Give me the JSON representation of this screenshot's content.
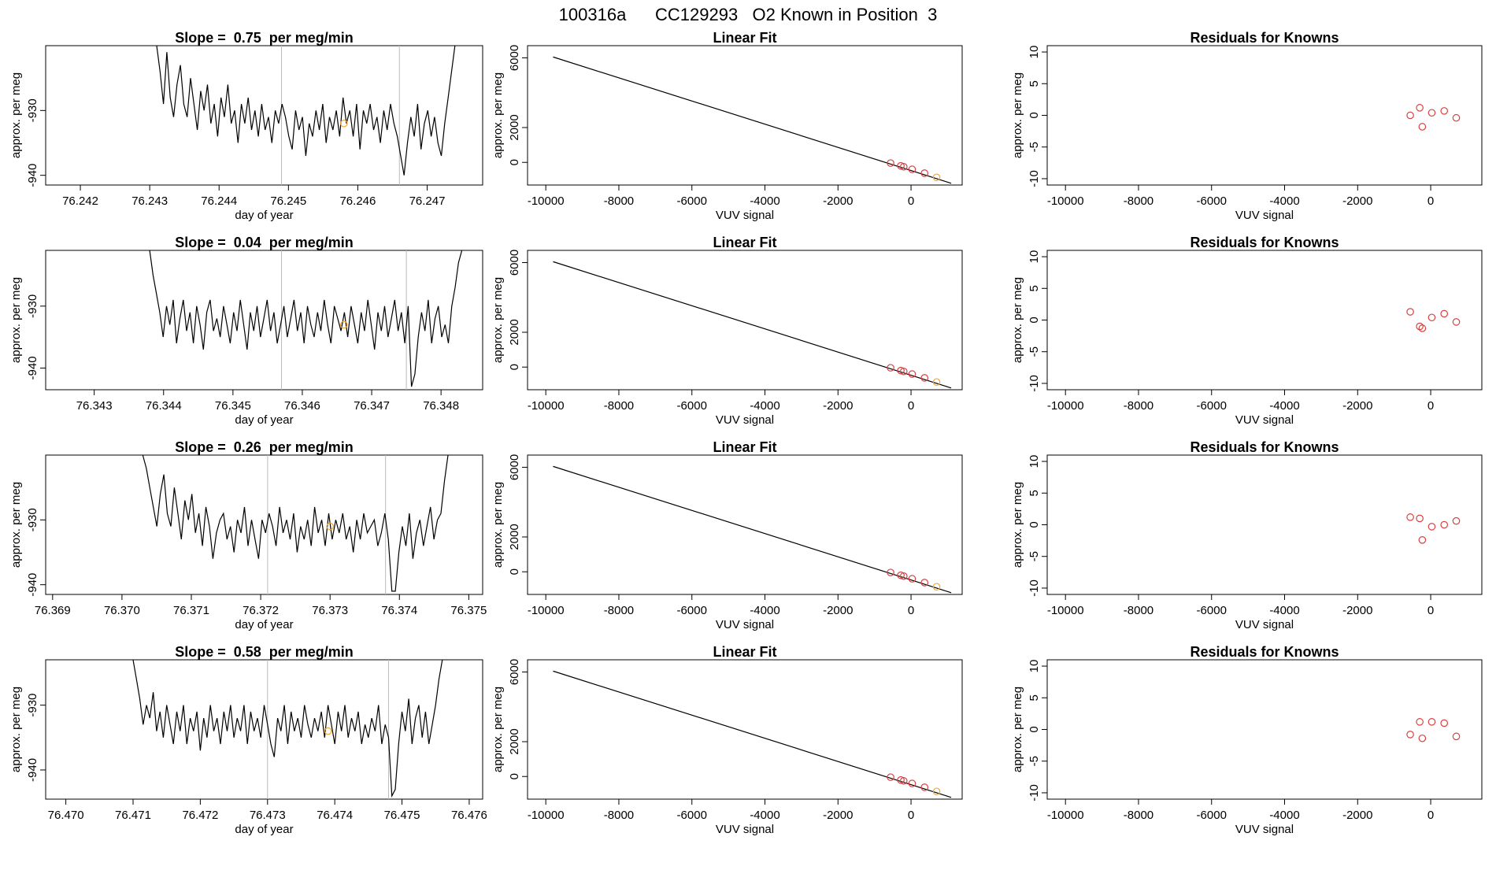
{
  "figure_title": "100316a      CC129293   O2 Known in Position  3",
  "colors": {
    "line": "#000000",
    "known_point": "#d94040",
    "unknown_point": "#f0a830",
    "vline": "#bbbbbb"
  },
  "chart_data": [
    {
      "type": "line",
      "row": 0,
      "panel": "time-series",
      "title": "Slope =  0.75  per meg/min",
      "xlabel": "day of year",
      "ylabel": "approx. per meg",
      "xlim": [
        76.2415,
        76.2478
      ],
      "ylim": [
        -941.5,
        -920.0
      ],
      "x_ticks": [
        "76.242",
        "76.243",
        "76.244",
        "76.245",
        "76.246",
        "76.247"
      ],
      "y_ticks": [
        "-930",
        "-940"
      ],
      "vlines": [
        76.2449,
        76.2466
      ],
      "x_start": 76.2431,
      "x_end": 76.2474,
      "series": [
        {
          "values": [
            -920,
            -924,
            -929,
            -921,
            -928,
            -931,
            -926,
            -923,
            -929,
            -931,
            -925,
            -929,
            -933,
            -927,
            -930,
            -926,
            -932,
            -929,
            -934,
            -928,
            -931,
            -926,
            -932,
            -930,
            -935,
            -929,
            -932,
            -928,
            -933,
            -930,
            -934,
            -929,
            -933,
            -931,
            -935,
            -930,
            -932,
            -929,
            -931,
            -934,
            -936,
            -930,
            -933,
            -931,
            -937,
            -932,
            -934,
            -930,
            -933,
            -929,
            -935,
            -931,
            -933,
            -930,
            -934,
            -928,
            -932,
            -930,
            -934,
            -929,
            -936,
            -930,
            -932,
            -929,
            -933,
            -931,
            -935,
            -930,
            -933,
            -929,
            -932,
            -934,
            -937,
            -940,
            -935,
            -931,
            -934,
            -929,
            -936,
            -932,
            -930,
            -934,
            -931,
            -935,
            -937,
            -932,
            -928,
            -924,
            -920
          ]
        }
      ],
      "points": [
        {
          "x": 76.2458,
          "y": -932,
          "kind": "unknown"
        }
      ]
    },
    {
      "type": "scatter",
      "row": 0,
      "panel": "linear-fit",
      "title": "Linear Fit",
      "xlabel": "VUV signal",
      "ylabel": "approx. per meg",
      "xlim": [
        -10500,
        1400
      ],
      "ylim": [
        -1300,
        6700
      ],
      "x_ticks": [
        "-10000",
        "-8000",
        "-6000",
        "-4000",
        "-2000",
        "0"
      ],
      "y_ticks": [
        "0",
        "2000",
        "6000"
      ],
      "fit_line": {
        "x": [
          -9800,
          1100
        ],
        "y": [
          6050,
          -1200
        ]
      },
      "points": [
        {
          "x": -560,
          "y": -40,
          "kind": "known"
        },
        {
          "x": -280,
          "y": -200,
          "kind": "known"
        },
        {
          "x": -200,
          "y": -250,
          "kind": "known"
        },
        {
          "x": 30,
          "y": -400,
          "kind": "known"
        },
        {
          "x": 370,
          "y": -620,
          "kind": "known"
        },
        {
          "x": 700,
          "y": -860,
          "kind": "unknown"
        }
      ]
    },
    {
      "type": "scatter",
      "row": 0,
      "panel": "residuals",
      "title": "Residuals for Knowns",
      "xlabel": "VUV signal",
      "ylabel": "approx. per meg",
      "xlim": [
        -10500,
        1400
      ],
      "ylim": [
        -11,
        11
      ],
      "x_ticks": [
        "-10000",
        "-8000",
        "-6000",
        "-4000",
        "-2000",
        "0"
      ],
      "y_ticks": [
        "10",
        "5",
        "0",
        "-5",
        "-10"
      ],
      "points": [
        {
          "x": -560,
          "y": 0.0,
          "kind": "known"
        },
        {
          "x": -300,
          "y": 1.2,
          "kind": "known"
        },
        {
          "x": -230,
          "y": -1.8,
          "kind": "known"
        },
        {
          "x": 30,
          "y": 0.4,
          "kind": "known"
        },
        {
          "x": 370,
          "y": 0.7,
          "kind": "known"
        },
        {
          "x": 700,
          "y": -0.4,
          "kind": "known"
        }
      ]
    },
    {
      "type": "line",
      "row": 1,
      "panel": "time-series",
      "title": "Slope =  0.04  per meg/min",
      "xlabel": "day of year",
      "ylabel": "approx. per meg",
      "xlim": [
        76.3423,
        76.3486
      ],
      "ylim": [
        -943.5,
        -921.0
      ],
      "x_ticks": [
        "76.343",
        "76.344",
        "76.345",
        "76.346",
        "76.347",
        "76.348"
      ],
      "y_ticks": [
        "-930",
        "-940"
      ],
      "vlines": [
        76.3457,
        76.3475
      ],
      "x_start": 76.3438,
      "x_end": 76.3483,
      "series": [
        {
          "values": [
            -921,
            -925,
            -928,
            -931,
            -935,
            -930,
            -933,
            -929,
            -936,
            -932,
            -929,
            -934,
            -931,
            -936,
            -930,
            -933,
            -937,
            -931,
            -929,
            -934,
            -932,
            -935,
            -930,
            -933,
            -936,
            -931,
            -934,
            -929,
            -933,
            -937,
            -931,
            -934,
            -930,
            -935,
            -932,
            -929,
            -934,
            -931,
            -936,
            -933,
            -930,
            -935,
            -932,
            -929,
            -934,
            -931,
            -936,
            -930,
            -933,
            -935,
            -931,
            -934,
            -929,
            -933,
            -936,
            -930,
            -932,
            -934,
            -931,
            -935,
            -930,
            -933,
            -936,
            -931,
            -934,
            -929,
            -933,
            -937,
            -931,
            -934,
            -930,
            -935,
            -932,
            -929,
            -934,
            -931,
            -936,
            -930,
            -943,
            -941,
            -935,
            -931,
            -934,
            -929,
            -936,
            -932,
            -930,
            -935,
            -933,
            -936,
            -930,
            -927,
            -923,
            -921
          ]
        }
      ],
      "points": [
        {
          "x": 76.3466,
          "y": -933,
          "kind": "unknown"
        }
      ]
    },
    {
      "type": "scatter",
      "row": 1,
      "panel": "linear-fit",
      "title": "Linear Fit",
      "xlabel": "VUV signal",
      "ylabel": "approx. per meg",
      "xlim": [
        -10500,
        1400
      ],
      "ylim": [
        -1300,
        6700
      ],
      "x_ticks": [
        "-10000",
        "-8000",
        "-6000",
        "-4000",
        "-2000",
        "0"
      ],
      "y_ticks": [
        "0",
        "2000",
        "6000"
      ],
      "fit_line": {
        "x": [
          -9800,
          1100
        ],
        "y": [
          6050,
          -1200
        ]
      },
      "points": [
        {
          "x": -560,
          "y": -40,
          "kind": "known"
        },
        {
          "x": -280,
          "y": -200,
          "kind": "known"
        },
        {
          "x": -200,
          "y": -250,
          "kind": "known"
        },
        {
          "x": 30,
          "y": -400,
          "kind": "known"
        },
        {
          "x": 370,
          "y": -620,
          "kind": "known"
        },
        {
          "x": 700,
          "y": -860,
          "kind": "unknown"
        }
      ]
    },
    {
      "type": "scatter",
      "row": 1,
      "panel": "residuals",
      "title": "Residuals for Knowns",
      "xlabel": "VUV signal",
      "ylabel": "approx. per meg",
      "xlim": [
        -10500,
        1400
      ],
      "ylim": [
        -11,
        11
      ],
      "x_ticks": [
        "-10000",
        "-8000",
        "-6000",
        "-4000",
        "-2000",
        "0"
      ],
      "y_ticks": [
        "10",
        "5",
        "0",
        "-5",
        "-10"
      ],
      "points": [
        {
          "x": -560,
          "y": 1.3,
          "kind": "known"
        },
        {
          "x": -300,
          "y": -1.0,
          "kind": "known"
        },
        {
          "x": -230,
          "y": -1.3,
          "kind": "known"
        },
        {
          "x": 30,
          "y": 0.4,
          "kind": "known"
        },
        {
          "x": 370,
          "y": 1.0,
          "kind": "known"
        },
        {
          "x": 700,
          "y": -0.3,
          "kind": "known"
        }
      ]
    },
    {
      "type": "line",
      "row": 2,
      "panel": "time-series",
      "title": "Slope =  0.26  per meg/min",
      "xlabel": "day of year",
      "ylabel": "approx. per meg",
      "xlim": [
        76.3689,
        76.3752
      ],
      "ylim": [
        -941.5,
        -920.0
      ],
      "x_ticks": [
        "76.369",
        "76.370",
        "76.371",
        "76.372",
        "76.373",
        "76.374",
        "76.375"
      ],
      "y_ticks": [
        "-930",
        "-940"
      ],
      "vlines": [
        76.3721,
        76.3738
      ],
      "x_start": 76.3703,
      "x_end": 76.3747,
      "series": [
        {
          "values": [
            -920,
            -922,
            -925,
            -928,
            -931,
            -926,
            -923,
            -929,
            -931,
            -925,
            -929,
            -933,
            -927,
            -930,
            -926,
            -932,
            -929,
            -934,
            -928,
            -931,
            -936,
            -932,
            -930,
            -929,
            -933,
            -931,
            -935,
            -930,
            -932,
            -928,
            -934,
            -930,
            -933,
            -936,
            -930,
            -932,
            -929,
            -931,
            -934,
            -928,
            -932,
            -930,
            -933,
            -929,
            -935,
            -931,
            -933,
            -930,
            -934,
            -928,
            -932,
            -930,
            -934,
            -929,
            -933,
            -930,
            -932,
            -929,
            -933,
            -931,
            -935,
            -930,
            -933,
            -929,
            -932,
            -931,
            -930,
            -934,
            -932,
            -929,
            -933,
            -941,
            -941,
            -935,
            -931,
            -934,
            -929,
            -936,
            -932,
            -930,
            -934,
            -931,
            -928,
            -933,
            -930,
            -929,
            -924,
            -920
          ]
        }
      ],
      "points": [
        {
          "x": 76.373,
          "y": -931,
          "kind": "unknown"
        }
      ]
    },
    {
      "type": "scatter",
      "row": 2,
      "panel": "linear-fit",
      "title": "Linear Fit",
      "xlabel": "VUV signal",
      "ylabel": "approx. per meg",
      "xlim": [
        -10500,
        1400
      ],
      "ylim": [
        -1300,
        6700
      ],
      "x_ticks": [
        "-10000",
        "-8000",
        "-6000",
        "-4000",
        "-2000",
        "0"
      ],
      "y_ticks": [
        "0",
        "2000",
        "6000"
      ],
      "fit_line": {
        "x": [
          -9800,
          1100
        ],
        "y": [
          6050,
          -1200
        ]
      },
      "points": [
        {
          "x": -560,
          "y": -40,
          "kind": "known"
        },
        {
          "x": -280,
          "y": -200,
          "kind": "known"
        },
        {
          "x": -200,
          "y": -250,
          "kind": "known"
        },
        {
          "x": 30,
          "y": -400,
          "kind": "known"
        },
        {
          "x": 370,
          "y": -620,
          "kind": "known"
        },
        {
          "x": 700,
          "y": -860,
          "kind": "unknown"
        }
      ]
    },
    {
      "type": "scatter",
      "row": 2,
      "panel": "residuals",
      "title": "Residuals for Knowns",
      "xlabel": "VUV signal",
      "ylabel": "approx. per meg",
      "xlim": [
        -10500,
        1400
      ],
      "ylim": [
        -11,
        11
      ],
      "x_ticks": [
        "-10000",
        "-8000",
        "-6000",
        "-4000",
        "-2000",
        "0"
      ],
      "y_ticks": [
        "10",
        "5",
        "0",
        "-5",
        "-10"
      ],
      "points": [
        {
          "x": -560,
          "y": 1.2,
          "kind": "known"
        },
        {
          "x": -300,
          "y": 1.0,
          "kind": "known"
        },
        {
          "x": -230,
          "y": -2.4,
          "kind": "known"
        },
        {
          "x": 30,
          "y": -0.3,
          "kind": "known"
        },
        {
          "x": 370,
          "y": 0.0,
          "kind": "known"
        },
        {
          "x": 700,
          "y": 0.6,
          "kind": "known"
        }
      ]
    },
    {
      "type": "line",
      "row": 3,
      "panel": "time-series",
      "title": "Slope =  0.58  per meg/min",
      "xlabel": "day of year",
      "ylabel": "approx. per meg",
      "xlim": [
        76.4697,
        76.4762
      ],
      "ylim": [
        -944.5,
        -923.0
      ],
      "x_ticks": [
        "76.470",
        "76.471",
        "76.472",
        "76.473",
        "76.474",
        "76.475",
        "76.476"
      ],
      "y_ticks": [
        "-930",
        "-940"
      ],
      "vlines": [
        76.473,
        76.4748
      ],
      "x_start": 76.471,
      "x_end": 76.4756,
      "series": [
        {
          "values": [
            -923,
            -926,
            -929,
            -933,
            -930,
            -932,
            -928,
            -934,
            -931,
            -935,
            -930,
            -933,
            -936,
            -931,
            -934,
            -930,
            -936,
            -932,
            -934,
            -931,
            -937,
            -932,
            -935,
            -930,
            -934,
            -932,
            -936,
            -931,
            -934,
            -930,
            -935,
            -932,
            -934,
            -930,
            -936,
            -931,
            -934,
            -932,
            -935,
            -930,
            -933,
            -936,
            -938,
            -932,
            -934,
            -930,
            -936,
            -931,
            -934,
            -932,
            -935,
            -930,
            -933,
            -935,
            -932,
            -934,
            -931,
            -935,
            -930,
            -933,
            -936,
            -931,
            -934,
            -930,
            -935,
            -932,
            -934,
            -931,
            -936,
            -933,
            -935,
            -932,
            -934,
            -930,
            -936,
            -933,
            -935,
            -944,
            -943,
            -936,
            -931,
            -934,
            -929,
            -936,
            -932,
            -930,
            -935,
            -931,
            -936,
            -933,
            -930,
            -926,
            -923
          ]
        }
      ],
      "points": [
        {
          "x": 76.4739,
          "y": -934,
          "kind": "unknown"
        }
      ]
    },
    {
      "type": "scatter",
      "row": 3,
      "panel": "linear-fit",
      "title": "Linear Fit",
      "xlabel": "VUV signal",
      "ylabel": "approx. per meg",
      "xlim": [
        -10500,
        1400
      ],
      "ylim": [
        -1300,
        6700
      ],
      "x_ticks": [
        "-10000",
        "-8000",
        "-6000",
        "-4000",
        "-2000",
        "0"
      ],
      "y_ticks": [
        "0",
        "2000",
        "6000"
      ],
      "fit_line": {
        "x": [
          -9800,
          1100
        ],
        "y": [
          6050,
          -1200
        ]
      },
      "points": [
        {
          "x": -560,
          "y": -40,
          "kind": "known"
        },
        {
          "x": -280,
          "y": -200,
          "kind": "known"
        },
        {
          "x": -200,
          "y": -250,
          "kind": "known"
        },
        {
          "x": 30,
          "y": -400,
          "kind": "known"
        },
        {
          "x": 370,
          "y": -620,
          "kind": "known"
        },
        {
          "x": 700,
          "y": -860,
          "kind": "unknown"
        }
      ]
    },
    {
      "type": "scatter",
      "row": 3,
      "panel": "residuals",
      "title": "Residuals for Knowns",
      "xlabel": "VUV signal",
      "ylabel": "approx. per meg",
      "xlim": [
        -10500,
        1400
      ],
      "ylim": [
        -11,
        11
      ],
      "x_ticks": [
        "-10000",
        "-8000",
        "-6000",
        "-4000",
        "-2000",
        "0"
      ],
      "y_ticks": [
        "10",
        "5",
        "0",
        "-5",
        "-10"
      ],
      "points": [
        {
          "x": -560,
          "y": -0.8,
          "kind": "known"
        },
        {
          "x": -300,
          "y": 1.2,
          "kind": "known"
        },
        {
          "x": -230,
          "y": -1.4,
          "kind": "known"
        },
        {
          "x": 30,
          "y": 1.2,
          "kind": "known"
        },
        {
          "x": 370,
          "y": 1.0,
          "kind": "known"
        },
        {
          "x": 700,
          "y": -1.1,
          "kind": "known"
        }
      ]
    }
  ]
}
